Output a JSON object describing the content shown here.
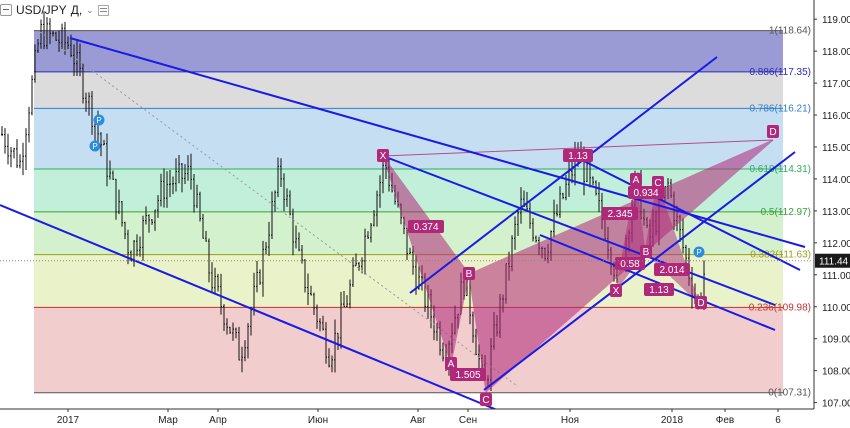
{
  "header": {
    "symbol": "USD/JPY",
    "timeframe": "Д,",
    "chevron": "⌄"
  },
  "price_tag": "111.44",
  "chart_data": {
    "type": "candlestick",
    "title": "",
    "ylim": [
      106.8,
      119.6
    ],
    "y_ticks": [
      "119.00",
      "118.00",
      "117.00",
      "116.00",
      "115.00",
      "114.00",
      "113.00",
      "112.00",
      "111.00",
      "110.00",
      "109.00",
      "108.00",
      "107.00"
    ],
    "x_ticks": [
      "2017",
      "Мар",
      "Апр",
      "Июн",
      "Авг",
      "Сен",
      "Ноя",
      "2018",
      "Фев",
      "6"
    ],
    "x_tick_pos": [
      68,
      168,
      218,
      318,
      418,
      468,
      570,
      672,
      725,
      778
    ],
    "fib_levels": [
      {
        "label": "1(118.64)",
        "price": 118.64
      },
      {
        "label": "0.886(117.35)",
        "price": 117.35
      },
      {
        "label": "0.786(116.21)",
        "price": 116.21
      },
      {
        "label": "0.618(114.31)",
        "price": 114.31
      },
      {
        "label": "0.5(112.97)",
        "price": 112.97
      },
      {
        "label": "0.382(111.63)",
        "price": 111.63
      },
      {
        "label": "0.236(109.98)",
        "price": 109.98
      },
      {
        "label": "0(107.31)",
        "price": 107.31
      }
    ],
    "fib_colors": [
      "#8888cc",
      "#d6d6d6",
      "#bcd8f0",
      "#b7ecd2",
      "#cceec4",
      "#e6f0c0",
      "#f0c4c4"
    ],
    "fib_text_colors": [
      "#555555",
      "#2b2bb8",
      "#2f7fcf",
      "#2fae5f",
      "#3aa03a",
      "#9aa018",
      "#c83030",
      "#555555"
    ],
    "pattern_points": [
      {
        "label": "X",
        "price": 114.55
      },
      {
        "label": "0.374",
        "price": 113.0
      },
      {
        "label": "A",
        "price": 108.55
      },
      {
        "label": "B",
        "price": 110.9
      },
      {
        "label": "1.505",
        "price": 108.0
      },
      {
        "label": "C",
        "price": 107.0
      },
      {
        "label": "1.13",
        "price": 114.95
      },
      {
        "label": "D",
        "price": 115.5
      },
      {
        "label": "2.345",
        "price": 113.0
      },
      {
        "label": "0.934",
        "price": 114.0
      },
      {
        "label": "A",
        "price": 114.4
      },
      {
        "label": "C",
        "price": 114.2
      },
      {
        "label": "B",
        "price": 112.0
      },
      {
        "label": "0.58",
        "price": 111.5
      },
      {
        "label": "X",
        "price": 110.7
      },
      {
        "label": "1.13",
        "price": 110.7
      },
      {
        "label": "2.014",
        "price": 111.3
      },
      {
        "label": "D",
        "price": 110.0
      }
    ],
    "events": [
      "P",
      "P",
      "P"
    ],
    "last_price": 111.44,
    "accent_blue": "#1a1ae6",
    "pattern_color": "#b0287a"
  }
}
